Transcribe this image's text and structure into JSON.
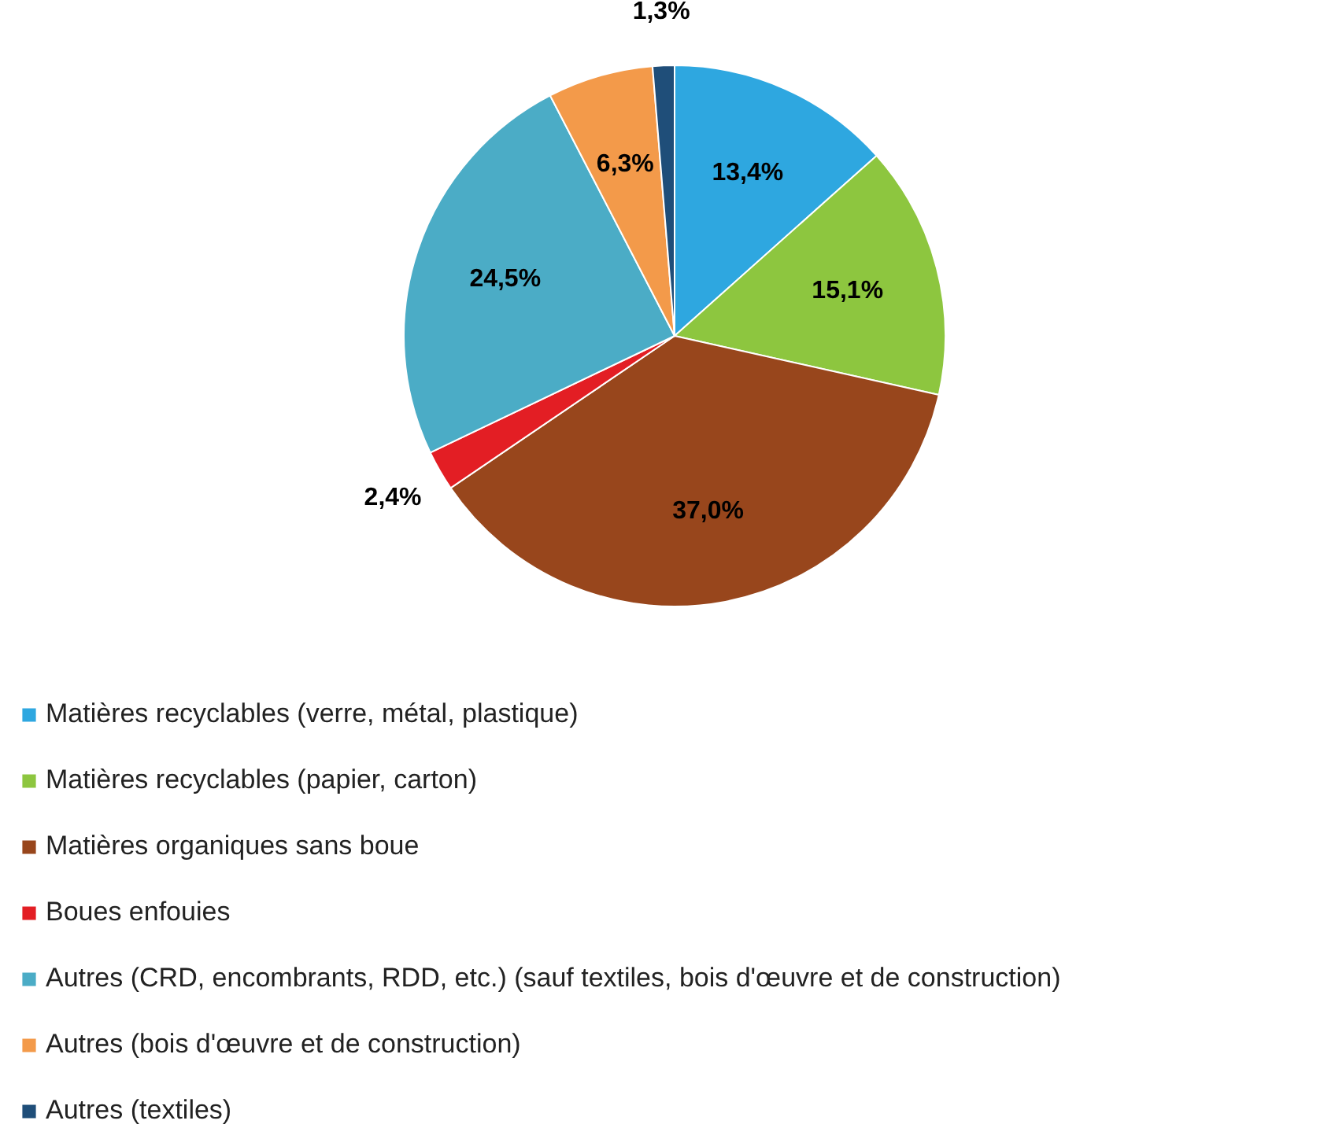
{
  "chart_data": {
    "type": "pie",
    "categories": [
      "Matières recyclables (verre, métal, plastique)",
      "Matières recyclables (papier, carton)",
      "Matières organiques sans boue",
      "Boues enfouies",
      "Autres (CRD, encombrants, RDD, etc.) (sauf textiles, bois d'œuvre et de construction)",
      "Autres (bois d'œuvre et de construction)",
      "Autres (textiles)"
    ],
    "values": [
      13.4,
      15.1,
      37.0,
      2.4,
      24.5,
      6.3,
      1.3
    ],
    "colors": [
      "#2ea7e0",
      "#8dc63f",
      "#98461c",
      "#e31e24",
      "#4bacc6",
      "#f39a4a",
      "#1f4e79"
    ],
    "value_labels": [
      "13,4%",
      "15,1%",
      "37,0%",
      "2,4%",
      "24,5%",
      "6,3%",
      "1,3%"
    ],
    "legend": "bottom"
  }
}
